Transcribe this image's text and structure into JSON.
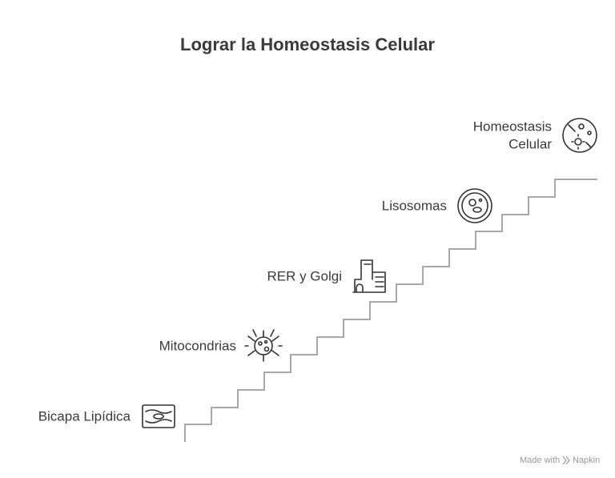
{
  "title": "Lograr la Homeostasis Celular",
  "steps": [
    {
      "lines": [
        "Bicapa Lipídica"
      ]
    },
    {
      "lines": [
        "Mitocondrias"
      ]
    },
    {
      "lines": [
        "RER y Golgi"
      ]
    },
    {
      "lines": [
        "Lisosomas"
      ]
    },
    {
      "lines": [
        "Homeostasis",
        "Celular"
      ]
    }
  ],
  "footer": {
    "prefix": "Made with",
    "brand": "Napkin"
  }
}
